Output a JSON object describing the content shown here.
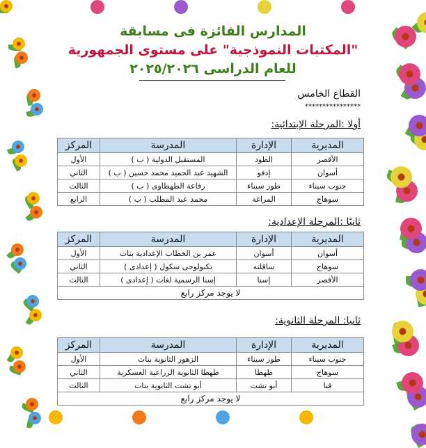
{
  "header": {
    "line1": "المدارس الفائزة فى مسابقة",
    "line2": "\"المكتبات النموذجية\" على مستوى الجمهورية",
    "line3": "للعام الدراسى ٢٠٢٥/٢٠٢٦"
  },
  "sector": "القطاع الخامس",
  "stars": "****************",
  "columns": [
    "المديرية",
    "الإدارة",
    "المدرسة",
    "المركز"
  ],
  "primary": {
    "title": "أولا :المرحلة الإبتدائية:",
    "rows": [
      [
        "الأقصر",
        "الطود",
        "المستقبل الدولية ( ب )",
        "الأول"
      ],
      [
        "أسوان",
        "إدفو",
        "الشهيد عبد الحميد محمد حسين ( ب )",
        "الثاني"
      ],
      [
        "جنوب سيناء",
        "طور سيناء",
        "رفاعة الطهطاوى ( ب )",
        "الثالث"
      ],
      [
        "سوهاج",
        "المراغة",
        "محمد عبد المطلب ( ب )",
        "الرابع"
      ]
    ]
  },
  "preparatory": {
    "title": "ثانيًا :المرحلة الإعدادية:",
    "rows": [
      [
        "أسوان",
        "أسوان",
        "عمر بن الخطاب الإعدادية بنات",
        "الأول"
      ],
      [
        "سوهاج",
        "ساقلته",
        "تكنولوجى سكول ( إعدادى )",
        "الثاني"
      ],
      [
        "الأقصر",
        "إسنا",
        "إسنا الرسمية لغات ( إعدادى )",
        "الثالث"
      ]
    ],
    "footer": "لا يوجد مركز رابع"
  },
  "secondary": {
    "title": "ثانيا: المرحلة الثانوية:",
    "rows": [
      [
        "جنوب سيناء",
        "طور سيناء",
        "الزهور الثانوية بنات",
        "الأول"
      ],
      [
        "سوهاج",
        "طهطا",
        "طهطا الثانوية الزراعية العسكرية",
        "الثاني"
      ],
      [
        "قنا",
        "أبو تشت",
        "أبو تشت الثانوية بنات",
        "الثالث"
      ]
    ],
    "footer": "لا يوجد مركز رابع"
  }
}
